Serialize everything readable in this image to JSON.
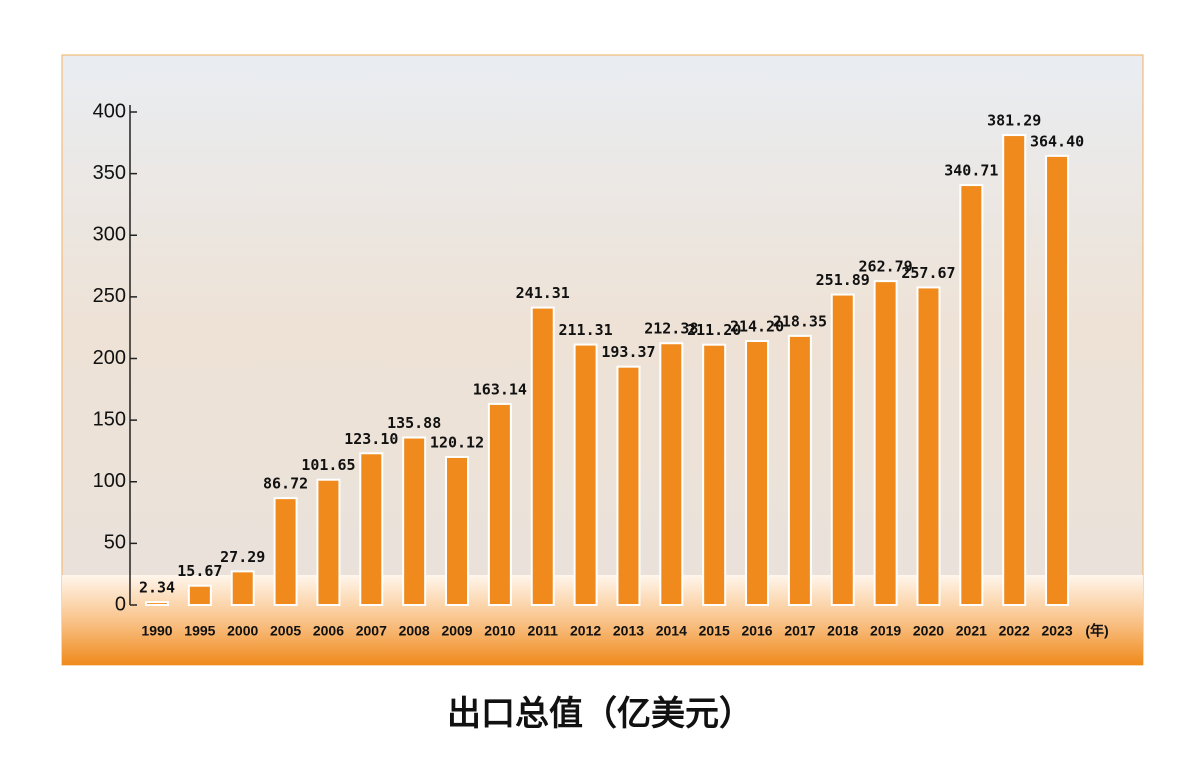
{
  "chart_data": {
    "type": "bar",
    "title": "出口总值（亿美元）",
    "xlabel": "(年)",
    "categories": [
      "1990",
      "1995",
      "2000",
      "2005",
      "2006",
      "2007",
      "2008",
      "2009",
      "2010",
      "2011",
      "2012",
      "2013",
      "2014",
      "2015",
      "2016",
      "2017",
      "2018",
      "2019",
      "2020",
      "2021",
      "2022",
      "2023"
    ],
    "values": [
      2.34,
      15.67,
      27.29,
      86.72,
      101.65,
      123.1,
      135.88,
      120.12,
      163.14,
      241.31,
      211.31,
      193.37,
      212.38,
      211.2,
      214.2,
      218.35,
      251.89,
      262.79,
      257.67,
      340.71,
      381.29,
      364.4
    ],
    "value_labels": [
      "2.34",
      "15.67",
      "27.29",
      "86.72",
      "101.65",
      "123.10",
      "135.88",
      "120.12",
      "163.14",
      "241.31",
      "211.31",
      "193.37",
      "212.38",
      "211.20",
      "214.20",
      "218.35",
      "251.89",
      "262.79",
      "257.67",
      "340.71",
      "381.29",
      "364.40"
    ],
    "color": "#f08a1c",
    "ylim": [
      0,
      400
    ],
    "yticks": [
      0,
      50,
      100,
      150,
      200,
      250,
      300,
      350,
      400
    ]
  }
}
